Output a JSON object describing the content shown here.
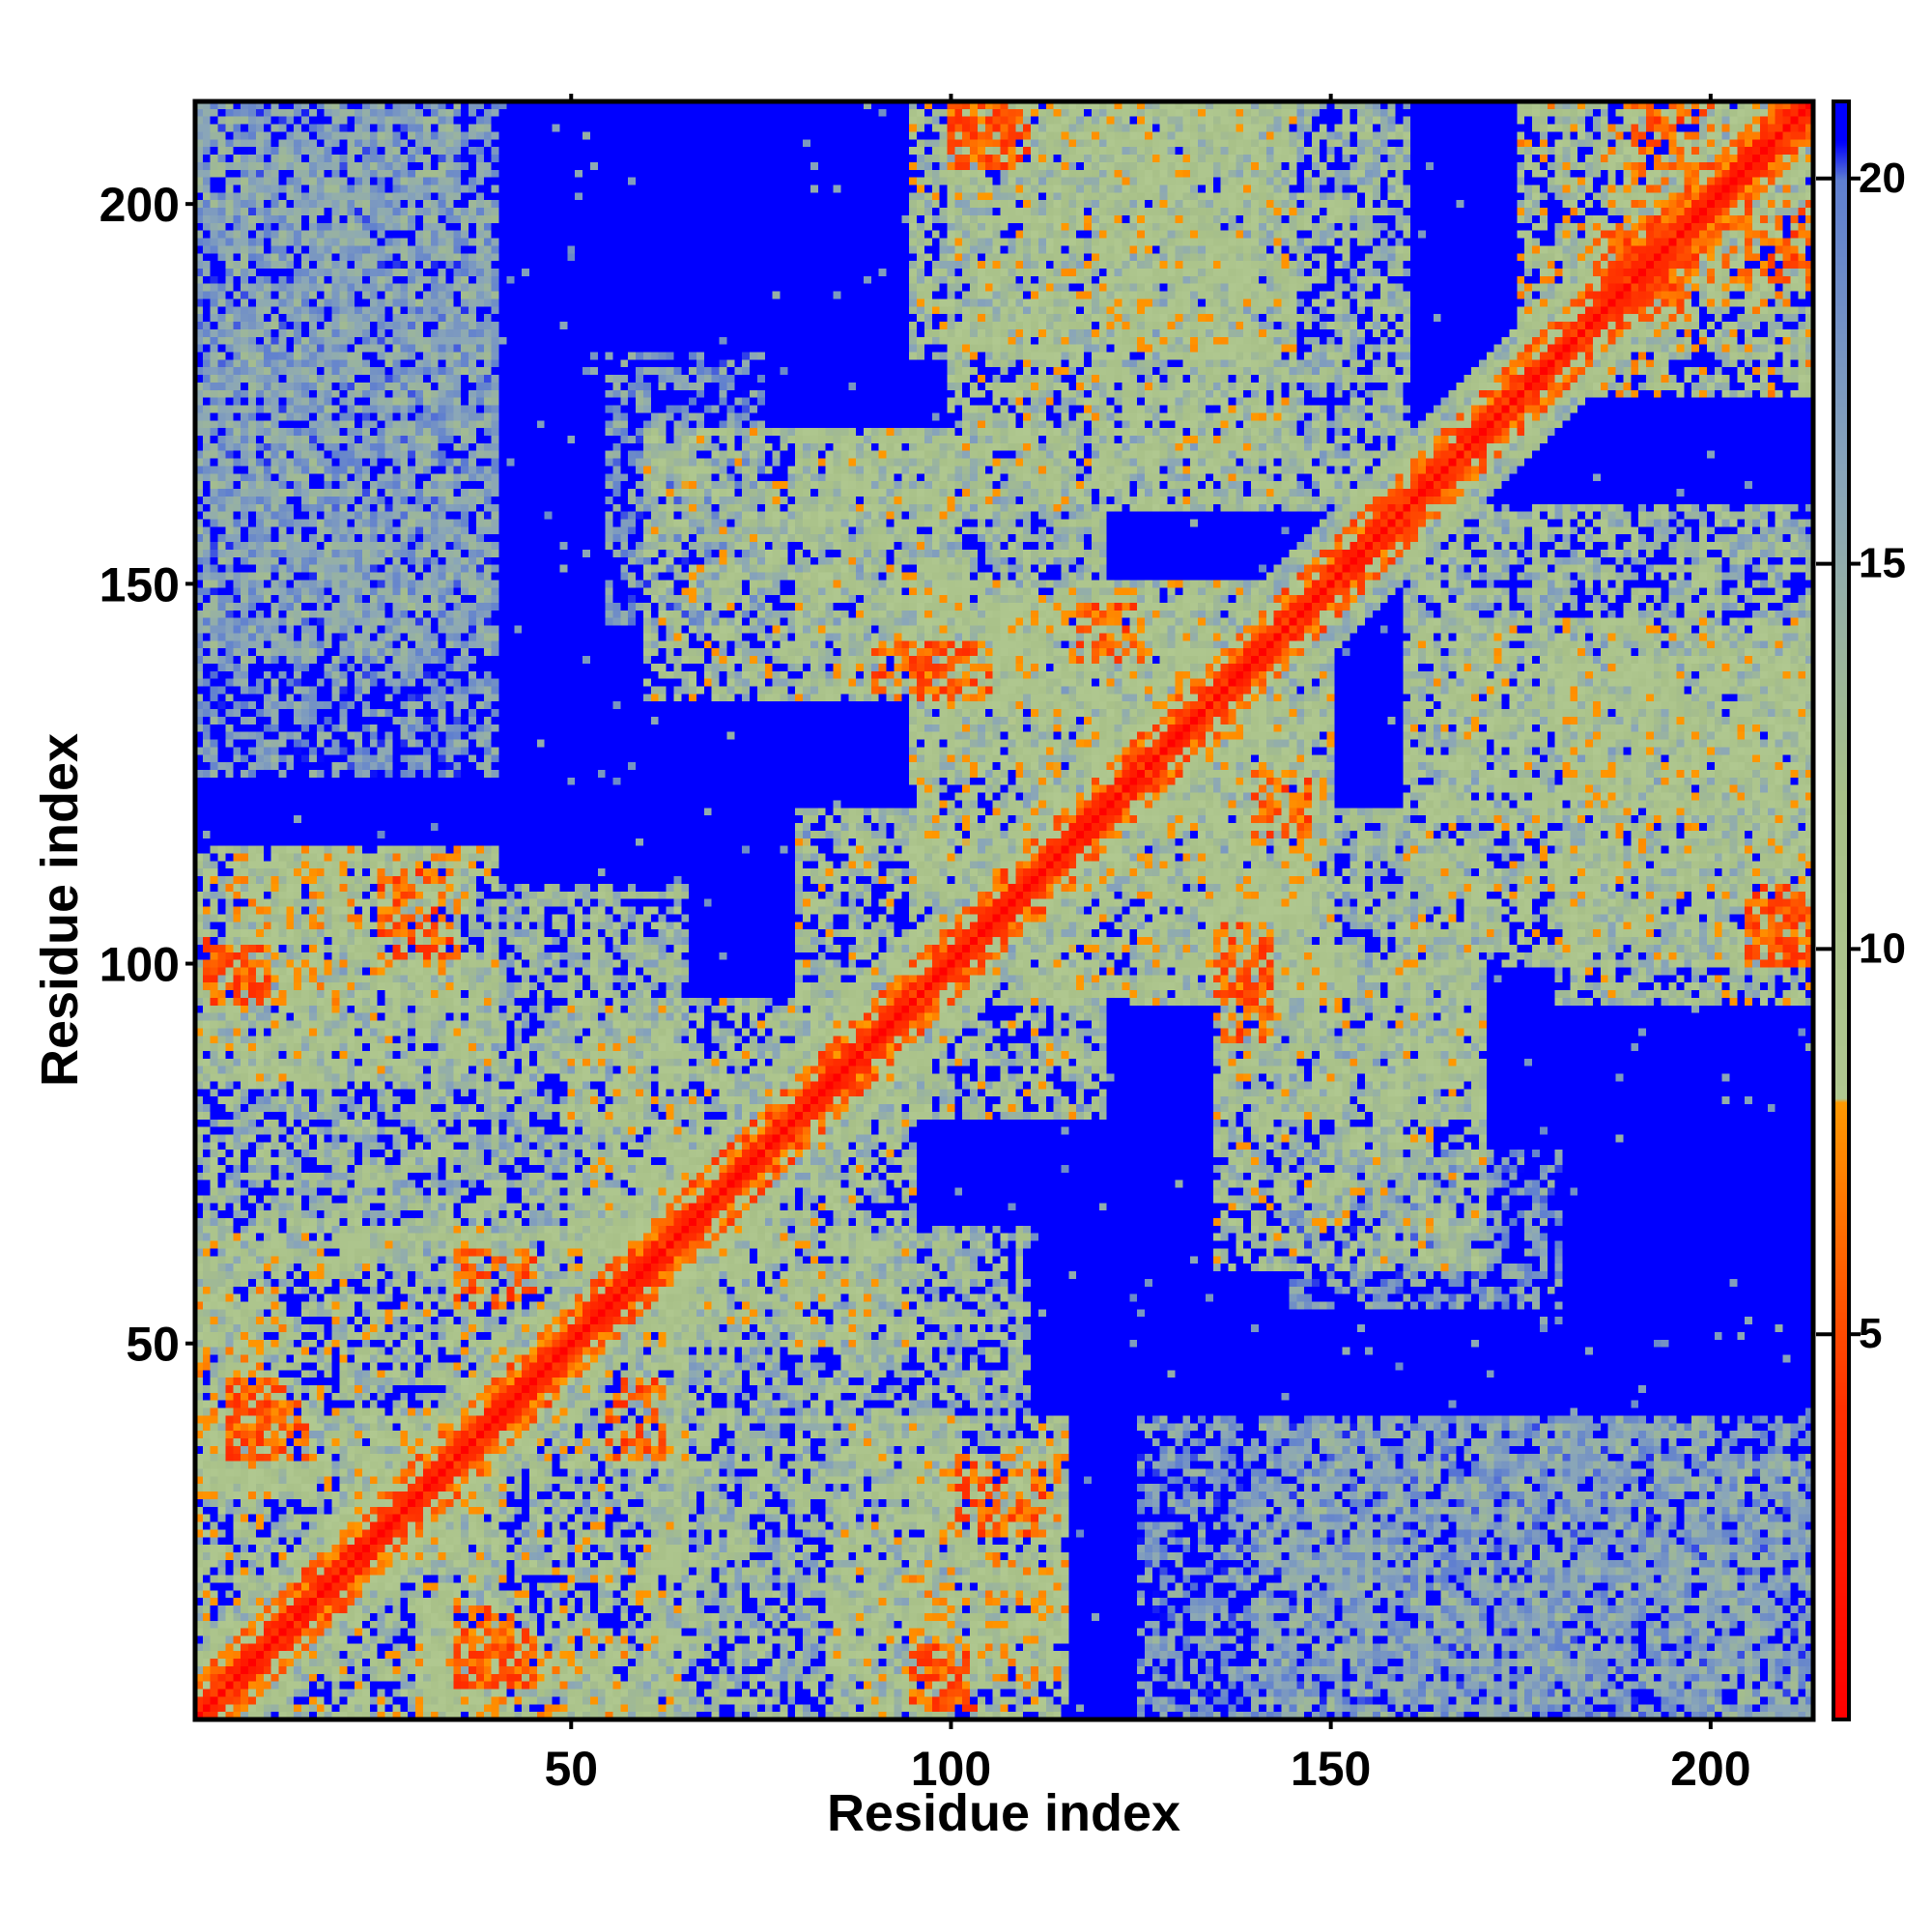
{
  "chart_data": {
    "type": "heatmap",
    "title": "",
    "xlabel": "Residue index",
    "ylabel": "Residue index",
    "x_range": [
      1,
      213
    ],
    "y_range": [
      1,
      213
    ],
    "x_ticks": [
      50,
      100,
      150,
      200
    ],
    "y_ticks": [
      50,
      100,
      150,
      200
    ],
    "x_tick_labels": [
      "50",
      "100",
      "150",
      "200"
    ],
    "y_tick_labels": [
      "50",
      "100",
      "150",
      "200"
    ],
    "value_range": [
      0,
      21
    ],
    "colorbar_ticks": [
      5,
      10,
      15,
      20
    ],
    "colorbar_tick_labels": [
      "5",
      "10",
      "15",
      "20"
    ],
    "colorscale": [
      {
        "value": 0,
        "color": "#ff0000"
      },
      {
        "value": 4,
        "color": "#ff3000"
      },
      {
        "value": 8,
        "color": "#ff9900"
      },
      {
        "value": 8.01,
        "color": "#b0c890"
      },
      {
        "value": 12,
        "color": "#a8c088"
      },
      {
        "value": 16,
        "color": "#8aa6b8"
      },
      {
        "value": 20,
        "color": "#5f7fd0"
      },
      {
        "value": 20.5,
        "color": "#0000ff"
      },
      {
        "value": 21,
        "color": "#0000ff"
      }
    ],
    "saturation_color": "#0000ff",
    "diagonal_value": 0,
    "contact_regions": [
      {
        "x": [
          1,
          40
        ],
        "y": [
          1,
          40
        ],
        "level": 12
      },
      {
        "x": [
          1,
          12
        ],
        "y": [
          30,
          60
        ],
        "level": 11
      },
      {
        "x": [
          30,
          65
        ],
        "y": [
          1,
          60
        ],
        "level": 12
      },
      {
        "x": [
          60,
          100
        ],
        "y": [
          1,
          40
        ],
        "level": 13
      },
      {
        "x": [
          95,
          115
        ],
        "y": [
          5,
          35
        ],
        "level": 11
      },
      {
        "x": [
          1,
          40
        ],
        "y": [
          85,
          115
        ],
        "level": 12
      },
      {
        "x": [
          40,
          65
        ],
        "y": [
          60,
          110
        ],
        "level": 13
      },
      {
        "x": [
          65,
          95
        ],
        "y": [
          50,
          95
        ],
        "level": 12
      },
      {
        "x": [
          80,
          120
        ],
        "y": [
          85,
          120
        ],
        "level": 12
      },
      {
        "x": [
          110,
          150
        ],
        "y": [
          95,
          135
        ],
        "level": 12
      },
      {
        "x": [
          135,
          170
        ],
        "y": [
          80,
          120
        ],
        "level": 13
      },
      {
        "x": [
          60,
          100
        ],
        "y": [
          135,
          170
        ],
        "level": 12
      },
      {
        "x": [
          95,
          140
        ],
        "y": [
          125,
          150
        ],
        "level": 12
      },
      {
        "x": [
          95,
          140
        ],
        "y": [
          180,
          213
        ],
        "level": 12
      },
      {
        "x": [
          120,
          160
        ],
        "y": [
          160,
          213
        ],
        "level": 13
      },
      {
        "x": [
          160,
          213
        ],
        "y": [
          100,
          145
        ],
        "level": 12
      },
      {
        "x": [
          175,
          213
        ],
        "y": [
          175,
          213
        ],
        "level": 11
      },
      {
        "x": [
          1,
          40
        ],
        "y": [
          140,
          200
        ],
        "level": 17
      },
      {
        "x": [
          125,
          215
        ],
        "y": [
          1,
          40
        ],
        "level": 18
      },
      {
        "x": [
          200,
          213
        ],
        "y": [
          1,
          35
        ],
        "level": 17
      },
      {
        "x": [
          145,
          180
        ],
        "y": [
          55,
          75
        ],
        "level": 18
      }
    ],
    "strong_contacts": [
      {
        "x": [
          2,
          8
        ],
        "y": [
          95,
          103
        ],
        "level": 6
      },
      {
        "x": [
          25,
          35
        ],
        "y": [
          100,
          112
        ],
        "level": 6
      },
      {
        "x": [
          35,
          45
        ],
        "y": [
          55,
          62
        ],
        "level": 6
      },
      {
        "x": [
          5,
          15
        ],
        "y": [
          35,
          42
        ],
        "level": 6
      },
      {
        "x": [
          35,
          45
        ],
        "y": [
          5,
          12
        ],
        "level": 6
      },
      {
        "x": [
          95,
          102
        ],
        "y": [
          2,
          10
        ],
        "level": 6
      },
      {
        "x": [
          100,
          108
        ],
        "y": [
          205,
          213
        ],
        "level": 6
      },
      {
        "x": [
          95,
          105
        ],
        "y": [
          135,
          142
        ],
        "level": 6
      },
      {
        "x": [
          135,
          142
        ],
        "y": [
          90,
          100
        ],
        "level": 6
      },
      {
        "x": [
          140,
          147
        ],
        "y": [
          117,
          125
        ],
        "level": 6
      },
      {
        "x": [
          185,
          198
        ],
        "y": [
          185,
          195
        ],
        "level": 6
      },
      {
        "x": [
          205,
          213
        ],
        "y": [
          100,
          110
        ],
        "level": 6
      },
      {
        "x": [
          200,
          213
        ],
        "y": [
          190,
          200
        ],
        "level": 6
      }
    ]
  }
}
